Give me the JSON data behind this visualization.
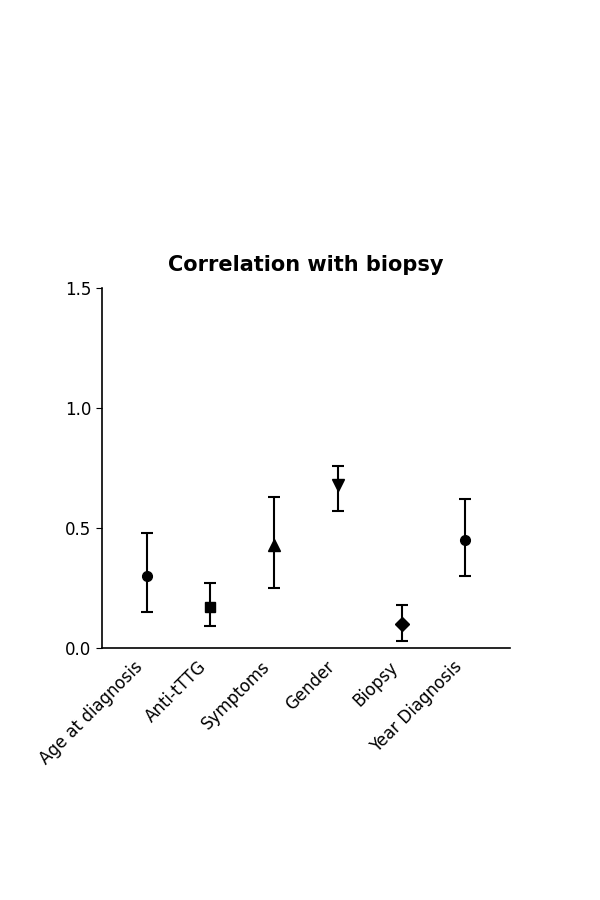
{
  "title": "Correlation with biopsy",
  "categories": [
    "Age at diagnosis",
    "Anti-tTTG",
    "Symptoms",
    "Gender",
    "Biopsy",
    "Year Diagnosis"
  ],
  "values": [
    0.3,
    0.17,
    0.43,
    0.68,
    0.1,
    0.45
  ],
  "err_low": [
    0.15,
    0.08,
    0.18,
    0.11,
    0.07,
    0.15
  ],
  "err_high": [
    0.18,
    0.1,
    0.2,
    0.08,
    0.08,
    0.17
  ],
  "markers": [
    "o",
    "s",
    "^",
    "v",
    "D",
    "o"
  ],
  "marker_size": [
    7,
    7,
    8,
    8,
    7,
    7
  ],
  "ylim": [
    0.0,
    1.5
  ],
  "yticks": [
    0.0,
    0.5,
    1.0,
    1.5
  ],
  "title_fontsize": 15,
  "tick_fontsize": 12,
  "color": "#000000",
  "background_color": "#ffffff"
}
